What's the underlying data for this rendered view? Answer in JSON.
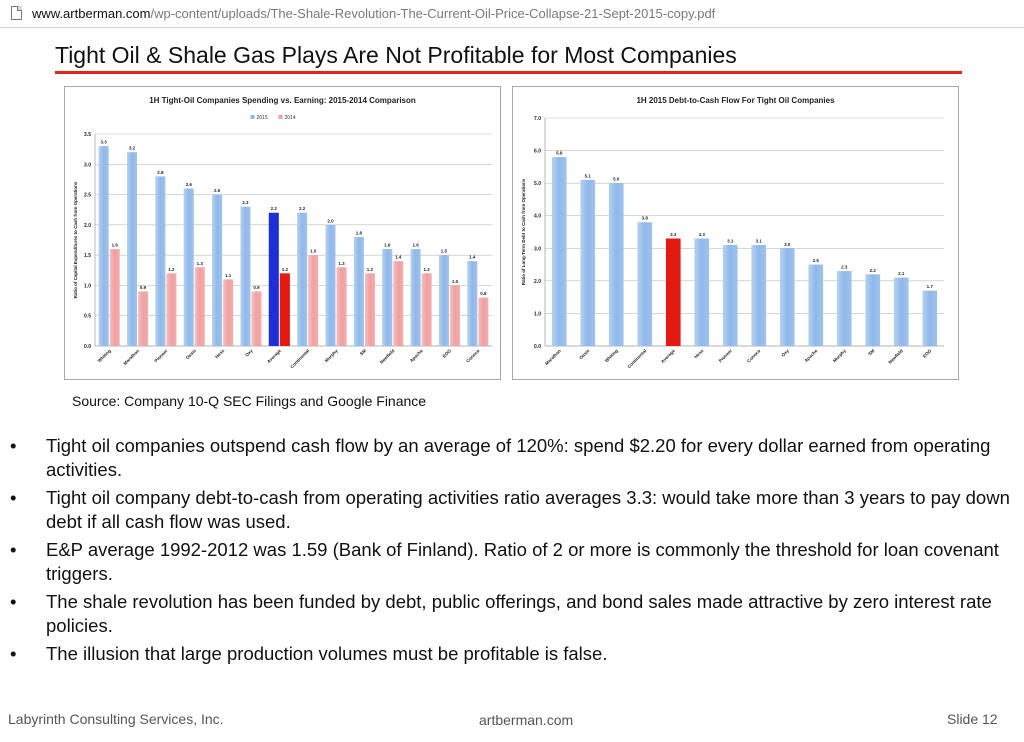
{
  "browser": {
    "url_host": "www.artberman.com",
    "url_path": "/wp-content/uploads/The-Shale-Revolution-The-Current-Oil-Price-Collapse-21-Sept-2015-copy.pdf",
    "page_icon": "pdf-page-icon"
  },
  "slide": {
    "title": "Tight Oil & Shale Gas Plays Are Not Profitable for Most Companies",
    "source": "Source:  Company 10-Q SEC Filings and Google Finance",
    "bullets": [
      "Tight oil  companies outspend cash flow by an average of 120%: spend $2.20 for every dollar earned from operating activities.",
      "Tight oil company debt-to-cash from operating activities ratio averages 3.3:  would take more than 3 years to pay down debt if all cash flow was used.",
      "E&P average 1992-2012 was 1.59 (Bank of Finland).  Ratio of 2 or more is commonly the threshold for loan covenant triggers.",
      "The shale revolution has been funded by debt, public offerings, and bond sales made attractive by zero interest rate policies.",
      "The illusion that large production volumes must be profitable is false."
    ],
    "bullet_marker": "•",
    "footer": {
      "left": "Labyrinth Consulting Services, Inc.",
      "center": "artberman.com",
      "right": "Slide 12"
    },
    "accent_color": "#e0241b"
  },
  "chart_data": [
    {
      "type": "bar",
      "title": "1H Tight-Oil Companies Spending vs. Earning: 2015-2014 Comparison",
      "ylabel": "Ratio of Capital Expenditures to Cash from Operations",
      "ylim": [
        0,
        3.5
      ],
      "yticks": [
        "0.0",
        "0.5",
        "1.0",
        "1.5",
        "2.0",
        "2.5",
        "3.0",
        "3.5"
      ],
      "grid": true,
      "legend": "top-center",
      "categories": [
        "Whiting",
        "Marathon",
        "Pioneer",
        "Oasis",
        "Hess",
        "Oxy",
        "Average",
        "Continental",
        "Murphy",
        "SM",
        "Newfield",
        "Apache",
        "EOG",
        "Conoco"
      ],
      "series": [
        {
          "name": "2015",
          "color": "#8fb8ea",
          "highlight": "#1f2fd6",
          "values": [
            3.3,
            3.2,
            2.8,
            2.6,
            2.5,
            2.3,
            2.2,
            2.2,
            2.0,
            1.8,
            1.6,
            1.6,
            1.5,
            1.4
          ]
        },
        {
          "name": "2014",
          "color": "#f0a0a0",
          "highlight": "#e21a10",
          "values": [
            1.6,
            0.9,
            1.2,
            1.3,
            1.1,
            0.9,
            1.2,
            1.5,
            1.3,
            1.2,
            1.4,
            1.2,
            1.0,
            0.8
          ]
        }
      ],
      "highlight_category": "Average"
    },
    {
      "type": "bar",
      "title": "1H 2015 Debt-to-Cash Flow For Tight Oil Companies",
      "ylabel": "Ratio of Long-Term Debt to Cash from Operations",
      "ylim": [
        0,
        7
      ],
      "yticks": [
        "0.0",
        "1.0",
        "2.0",
        "3.0",
        "4.0",
        "5.0",
        "6.0",
        "7.0"
      ],
      "grid": true,
      "categories": [
        "Marathon",
        "Oasis",
        "Whiting",
        "Continental",
        "Average",
        "Hess",
        "Pioneer",
        "Conoco",
        "Oxy",
        "Apache",
        "Murphy",
        "SM",
        "Newfield",
        "EOG"
      ],
      "series": [
        {
          "color": "#8fb8ea",
          "highlight": "#e21a10",
          "values": [
            5.8,
            5.1,
            5.0,
            3.8,
            3.3,
            3.3,
            3.1,
            3.1,
            3.0,
            2.5,
            2.3,
            2.2,
            2.1,
            1.7
          ]
        }
      ],
      "highlight_category": "Average"
    }
  ]
}
